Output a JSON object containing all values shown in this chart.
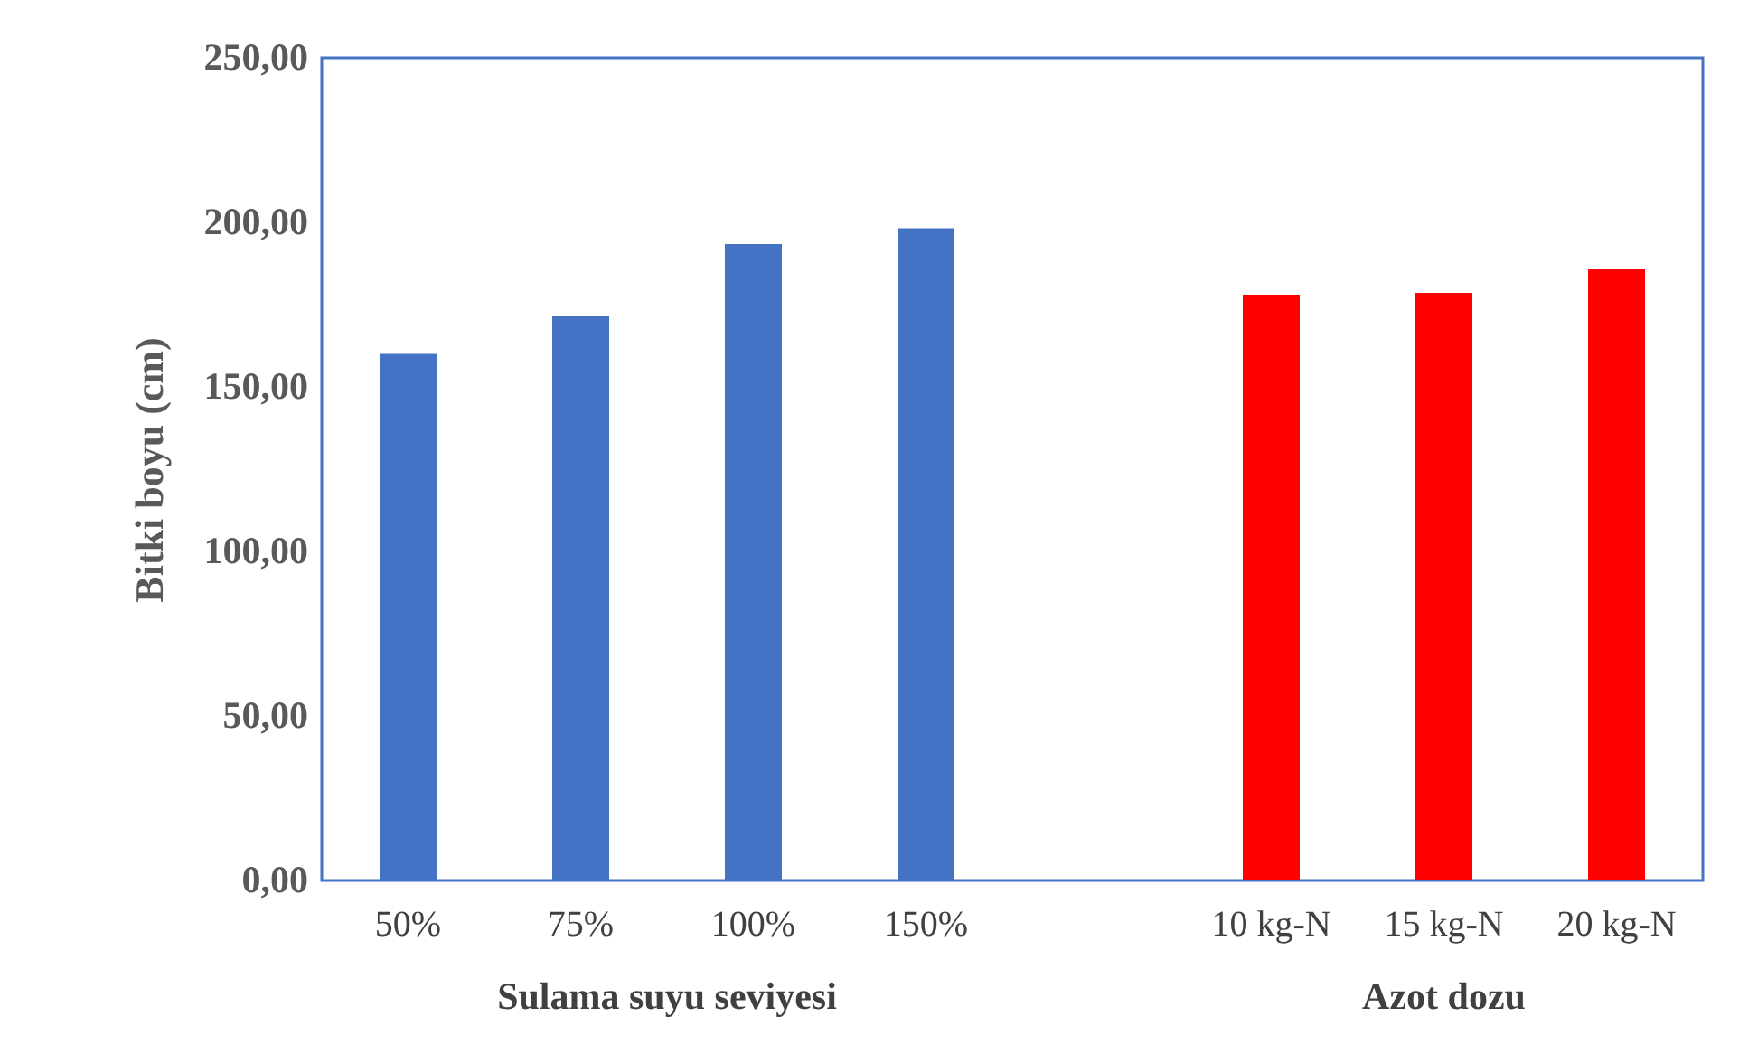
{
  "chart_data": {
    "type": "bar",
    "ylabel": "Bitki boyu (cm)",
    "categories": [
      "50%",
      "75%",
      "100%",
      "150%",
      null,
      "10 kg-N",
      "15 kg-N",
      "20 kg-N"
    ],
    "series": [
      {
        "color": "#4472c4",
        "values": [
          160,
          171.4,
          193.4,
          198.2,
          null,
          null,
          null,
          null
        ]
      },
      {
        "color": "#ff0000",
        "values": [
          null,
          null,
          null,
          null,
          null,
          178,
          178.6,
          185.7
        ]
      }
    ],
    "ylim": [
      0,
      250
    ],
    "yticks": [
      {
        "value": 0,
        "label": "0,00"
      },
      {
        "value": 50,
        "label": "50,00"
      },
      {
        "value": 100,
        "label": "100,00"
      },
      {
        "value": 150,
        "label": "150,00"
      },
      {
        "value": 200,
        "label": "200,00"
      },
      {
        "value": 250,
        "label": "250,00"
      }
    ],
    "annotations": [
      "Sulama suyu seviyesi",
      "Azot dozu"
    ]
  }
}
